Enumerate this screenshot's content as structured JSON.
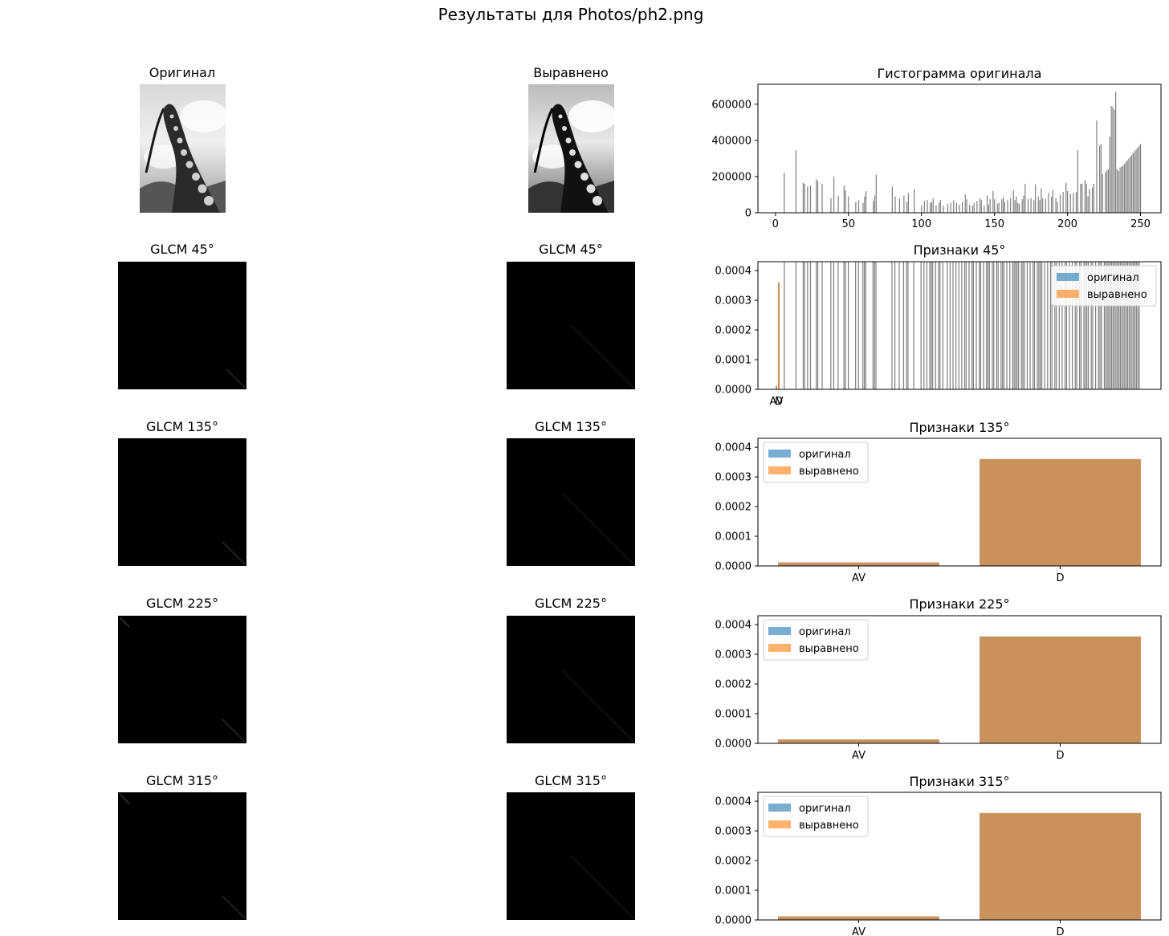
{
  "page": {
    "suptitle": "Результаты для Photos/ph2.png"
  },
  "images": {
    "original_title": "Оригинал",
    "equalized_title": "Выравнено"
  },
  "glcm_rows": [
    {
      "left_title": "GLCM 45°",
      "right_title": "GLCM 45°"
    },
    {
      "left_title": "GLCM 135°",
      "right_title": "GLCM 135°"
    },
    {
      "left_title": "GLCM 225°",
      "right_title": "GLCM 225°"
    },
    {
      "left_title": "GLCM 315°",
      "right_title": "GLCM 315°"
    }
  ],
  "colors": {
    "original": "#1f77b4",
    "equalized": "#ff7f0e",
    "hist": "#7f7f7f",
    "blended": "#c8915e"
  },
  "chart_data": [
    {
      "id": "hist",
      "type": "bar",
      "title": "Гистограмма оригинала",
      "xlim": [
        -12,
        264
      ],
      "ylim": [
        0,
        710000
      ],
      "xticks": [
        0,
        50,
        100,
        150,
        200,
        250
      ],
      "yticks": [
        0,
        200000,
        400000,
        600000
      ],
      "x": [
        6,
        14,
        19,
        20,
        22,
        24,
        28,
        29,
        32,
        38,
        40,
        43,
        47,
        48,
        50,
        55,
        57,
        60,
        61,
        62,
        67,
        68,
        69,
        80,
        82,
        85,
        88,
        90,
        91,
        95,
        100,
        102,
        104,
        106,
        107,
        108,
        110,
        112,
        113,
        115,
        118,
        120,
        122,
        124,
        126,
        128,
        130,
        131,
        133,
        135,
        136,
        138,
        140,
        141,
        143,
        145,
        146,
        147,
        149,
        150,
        152,
        153,
        155,
        156,
        157,
        159,
        161,
        163,
        164,
        165,
        166,
        167,
        169,
        170,
        171,
        173,
        175,
        177,
        178,
        180,
        181,
        182,
        183,
        185,
        187,
        189,
        190,
        192,
        193,
        195,
        197,
        199,
        200,
        202,
        204,
        206,
        207,
        209,
        210,
        212,
        213,
        214,
        215,
        217,
        218,
        220,
        222,
        223,
        224,
        226,
        227,
        228,
        229,
        230,
        231,
        232,
        233,
        234,
        235,
        236,
        237,
        238,
        239,
        240,
        241,
        242,
        243,
        244,
        245,
        246,
        247,
        248,
        249,
        250
      ],
      "values": [
        220000,
        345000,
        165000,
        160000,
        145000,
        150000,
        185000,
        175000,
        160000,
        80000,
        200000,
        95000,
        150000,
        125000,
        90000,
        60000,
        70000,
        55000,
        90000,
        120000,
        65000,
        95000,
        210000,
        145000,
        90000,
        80000,
        95000,
        60000,
        110000,
        130000,
        40000,
        65000,
        70000,
        55000,
        60000,
        80000,
        40000,
        55000,
        70000,
        40000,
        50000,
        55000,
        70000,
        55000,
        45000,
        60000,
        100000,
        75000,
        45000,
        40000,
        55000,
        65000,
        80000,
        70000,
        40000,
        95000,
        45000,
        75000,
        120000,
        75000,
        50000,
        55000,
        75000,
        85000,
        60000,
        70000,
        80000,
        125000,
        70000,
        90000,
        55000,
        50000,
        75000,
        95000,
        160000,
        75000,
        80000,
        70000,
        155000,
        90000,
        70000,
        135000,
        80000,
        75000,
        110000,
        90000,
        125000,
        80000,
        60000,
        100000,
        115000,
        165000,
        120000,
        105000,
        110000,
        115000,
        345000,
        160000,
        160000,
        180000,
        160000,
        90000,
        130000,
        140000,
        160000,
        510000,
        370000,
        380000,
        215000,
        225000,
        235000,
        240000,
        420000,
        590000,
        585000,
        570000,
        670000,
        240000,
        230000,
        250000,
        255000,
        260000,
        270000,
        280000,
        290000,
        300000,
        310000,
        320000,
        330000,
        340000,
        350000,
        360000,
        370000,
        380000
      ],
      "color": "#7f7f7f"
    },
    {
      "id": "features45",
      "type": "bar",
      "title": "Признаки 45°",
      "categories": [
        "AV",
        "D"
      ],
      "ylim": [
        0,
        0.00043
      ],
      "yticks": [
        "0.0000",
        "0.0001",
        "0.0002",
        "0.0003",
        "0.0004"
      ],
      "ytick_values": [
        0,
        0.0001,
        0.0002,
        0.0003,
        0.0004
      ],
      "series": [
        {
          "name": "оригинал",
          "values": [
            1.2e-05,
            0.00036
          ]
        },
        {
          "name": "выравнено",
          "values": [
            1.2e-05,
            0.00036
          ]
        }
      ],
      "legend": "top-right",
      "note": "grey background bars from shared axes"
    },
    {
      "id": "features135",
      "type": "bar",
      "title": "Признаки 135°",
      "categories": [
        "AV",
        "D"
      ],
      "ylim": [
        0,
        0.00043
      ],
      "yticks": [
        "0.0000",
        "0.0001",
        "0.0002",
        "0.0003",
        "0.0004"
      ],
      "ytick_values": [
        0,
        0.0001,
        0.0002,
        0.0003,
        0.0004
      ],
      "series": [
        {
          "name": "оригинал",
          "values": [
            1.2e-05,
            0.00036
          ]
        },
        {
          "name": "выравнено",
          "values": [
            1.2e-05,
            0.00036
          ]
        }
      ],
      "legend": "top-left"
    },
    {
      "id": "features225",
      "type": "bar",
      "title": "Признаки 225°",
      "categories": [
        "AV",
        "D"
      ],
      "ylim": [
        0,
        0.00043
      ],
      "yticks": [
        "0.0000",
        "0.0001",
        "0.0002",
        "0.0003",
        "0.0004"
      ],
      "ytick_values": [
        0,
        0.0001,
        0.0002,
        0.0003,
        0.0004
      ],
      "series": [
        {
          "name": "оригинал",
          "values": [
            1.3e-05,
            0.00036
          ]
        },
        {
          "name": "выравнено",
          "values": [
            1.3e-05,
            0.00036
          ]
        }
      ],
      "legend": "top-left"
    },
    {
      "id": "features315",
      "type": "bar",
      "title": "Признаки 315°",
      "categories": [
        "AV",
        "D"
      ],
      "ylim": [
        0,
        0.00043
      ],
      "yticks": [
        "0.0000",
        "0.0001",
        "0.0002",
        "0.0003",
        "0.0004"
      ],
      "ytick_values": [
        0,
        0.0001,
        0.0002,
        0.0003,
        0.0004
      ],
      "series": [
        {
          "name": "оригинал",
          "values": [
            1.2e-05,
            0.00036
          ]
        },
        {
          "name": "выравнено",
          "values": [
            1.2e-05,
            0.00036
          ]
        }
      ],
      "legend": "top-left"
    }
  ]
}
